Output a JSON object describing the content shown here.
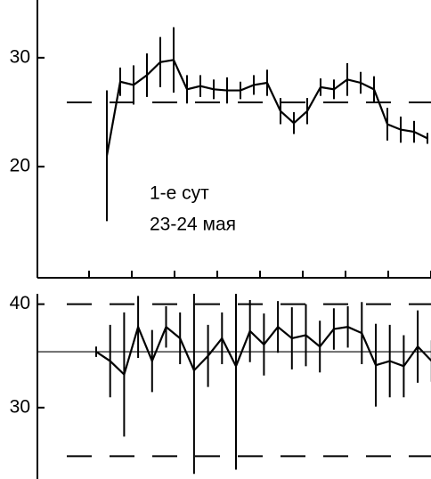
{
  "chart_data": [
    {
      "type": "errorline",
      "categories": [
        null,
        null,
        null,
        null,
        null,
        null,
        null,
        null,
        null,
        null,
        null,
        null,
        null,
        null,
        null,
        null,
        null,
        null,
        null,
        null,
        null,
        null,
        null,
        null,
        null
      ],
      "values": [
        21.0,
        27.8,
        27.5,
        28.4,
        29.6,
        29.8,
        27.1,
        27.4,
        27.1,
        27.0,
        27.0,
        27.5,
        27.7,
        25.1,
        24.0,
        25.1,
        27.3,
        27.1,
        28.0,
        27.7,
        27.1,
        23.9,
        23.4,
        23.2,
        22.6
      ],
      "errors": [
        6.0,
        1.3,
        1.8,
        2.0,
        2.3,
        3.0,
        1.3,
        1.0,
        0.9,
        1.2,
        0.8,
        0.9,
        1.2,
        1.2,
        1.0,
        1.2,
        0.8,
        0.9,
        1.5,
        1.0,
        1.2,
        1.5,
        1.2,
        1.0,
        0.5
      ],
      "color": "#000000",
      "ylim": [
        9.8,
        35.3
      ],
      "yticks": [
        20,
        30
      ],
      "hlines": [
        {
          "value": 25.9,
          "style": "dashed"
        }
      ],
      "annotations": [
        "1-е сут",
        "23-24 мая"
      ]
    },
    {
      "type": "errorline",
      "categories": [
        null,
        null,
        null,
        null,
        null,
        null,
        null,
        null,
        null,
        null,
        null,
        null,
        null,
        null,
        null,
        null,
        null,
        null,
        null,
        null,
        null,
        null,
        null,
        null,
        null
      ],
      "values": [
        35.4,
        34.5,
        33.2,
        37.8,
        34.5,
        37.8,
        36.7,
        33.6,
        35.0,
        36.7,
        34.0,
        37.4,
        36.1,
        37.8,
        36.7,
        37.0,
        35.9,
        37.6,
        37.8,
        37.2,
        34.1,
        34.5,
        34.0,
        35.9,
        34.5
      ],
      "errors": [
        0.5,
        3.5,
        6.0,
        3.0,
        3.0,
        2.0,
        2.5,
        10.0,
        3.0,
        2.5,
        10.0,
        3.0,
        3.0,
        2.5,
        3.0,
        3.0,
        2.5,
        2.0,
        2.0,
        3.0,
        4.0,
        3.5,
        3.0,
        3.5,
        2.0
      ],
      "color": "#000000",
      "ylim": [
        23.1,
        41.0
      ],
      "yticks": [
        30,
        40
      ],
      "hlines": [
        {
          "value": 40,
          "style": "dashed"
        },
        {
          "value": 35.4,
          "style": "solid"
        },
        {
          "value": 25.3,
          "style": "dashed"
        }
      ]
    }
  ]
}
